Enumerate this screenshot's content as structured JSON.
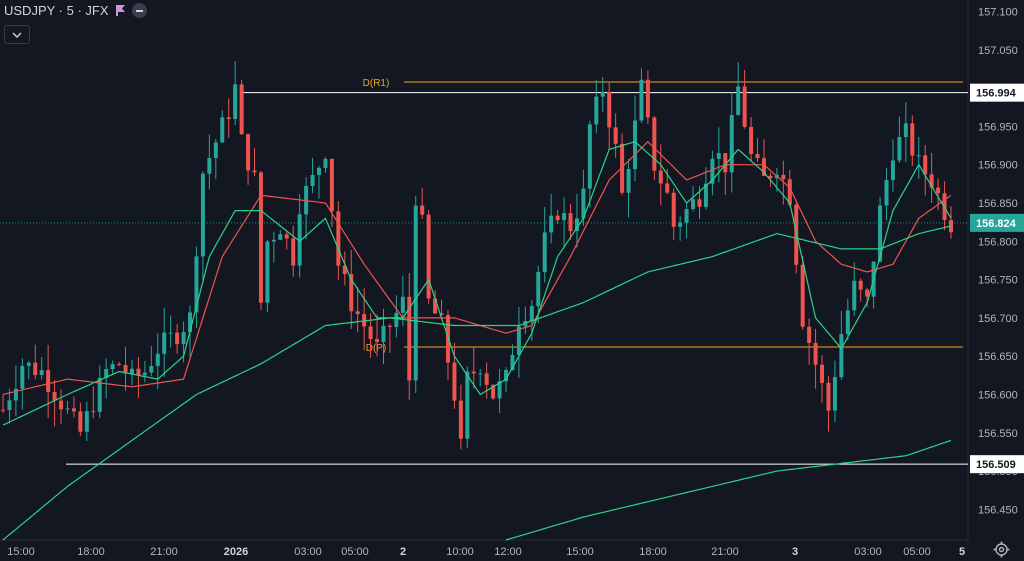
{
  "header": {
    "symbol_line": "USDJPY · 5 · JFX"
  },
  "chart_data": {
    "type": "line",
    "symbol": "USDJPY",
    "timeframe": "5",
    "source": "JFX",
    "ylim": [
      156.41,
      157.115
    ],
    "price_ticks": [
      157.1,
      157.05,
      156.95,
      156.9,
      156.85,
      156.8,
      156.75,
      156.7,
      156.65,
      156.6,
      156.55,
      156.5,
      156.45
    ],
    "price_tick_labels": [
      "157.100",
      "157.050",
      "156.950",
      "156.900",
      "156.850",
      "156.800",
      "156.750",
      "156.700",
      "156.650",
      "156.600",
      "156.550",
      "156.500",
      "156.450"
    ],
    "time_labels": [
      "15:00",
      "18:00",
      "21:00",
      "2026",
      "03:00",
      "05:00",
      "2",
      "10:00",
      "12:00",
      "15:00",
      "18:00",
      "21:00",
      "3",
      "03:00",
      "05:00",
      "5"
    ],
    "current_price": {
      "label": "156.824",
      "value": 156.824,
      "color": "#26a69a"
    },
    "horizontal_lines": [
      {
        "name": "high",
        "value": 156.994,
        "label": "156.994",
        "color": "#ffffff"
      },
      {
        "name": "low",
        "value": 156.509,
        "label": "156.509",
        "color": "#ffffff"
      },
      {
        "name": "D(R1)",
        "value": 157.008,
        "label": "D(R1)",
        "color": "#f7a21b"
      },
      {
        "name": "D(P)",
        "value": 156.662,
        "label": "D(P)",
        "color": "#f7a21b"
      }
    ],
    "colors": {
      "up": "#26a69a",
      "down": "#ef5350",
      "ma_fast": "#2bd38a",
      "ma_mid": "#ef5350",
      "ma_slow": "#2bd38a",
      "background": "#131722"
    },
    "price_path": [
      [
        0,
        156.58
      ],
      [
        3,
        156.64
      ],
      [
        6,
        156.63
      ],
      [
        9,
        156.59
      ],
      [
        12,
        156.55
      ],
      [
        14,
        156.59
      ],
      [
        16,
        156.63
      ],
      [
        18,
        156.64
      ],
      [
        20,
        156.62
      ],
      [
        22,
        156.63
      ],
      [
        24,
        156.66
      ],
      [
        27,
        156.68
      ],
      [
        29,
        156.7
      ],
      [
        31,
        156.89
      ],
      [
        33,
        156.93
      ],
      [
        35,
        156.97
      ],
      [
        36,
        157.0
      ],
      [
        37,
        156.93
      ],
      [
        39,
        156.88
      ],
      [
        40,
        156.72
      ],
      [
        41,
        156.8
      ],
      [
        43,
        156.82
      ],
      [
        45,
        156.78
      ],
      [
        46,
        156.85
      ],
      [
        48,
        156.88
      ],
      [
        50,
        156.92
      ],
      [
        52,
        156.77
      ],
      [
        54,
        156.72
      ],
      [
        56,
        156.69
      ],
      [
        58,
        156.66
      ],
      [
        60,
        156.69
      ],
      [
        62,
        156.72
      ],
      [
        63,
        156.62
      ],
      [
        64,
        156.86
      ],
      [
        65,
        156.82
      ],
      [
        66,
        156.72
      ],
      [
        68,
        156.69
      ],
      [
        70,
        156.6
      ],
      [
        71,
        156.53
      ],
      [
        72,
        156.62
      ],
      [
        74,
        156.64
      ],
      [
        76,
        156.6
      ],
      [
        78,
        156.62
      ],
      [
        80,
        156.7
      ],
      [
        82,
        156.72
      ],
      [
        84,
        156.8
      ],
      [
        86,
        156.84
      ],
      [
        88,
        156.82
      ],
      [
        90,
        156.86
      ],
      [
        91,
        156.95
      ],
      [
        93,
        157.0
      ],
      [
        95,
        156.92
      ],
      [
        96,
        156.86
      ],
      [
        98,
        156.95
      ],
      [
        99,
        157.0
      ],
      [
        101,
        156.9
      ],
      [
        103,
        156.86
      ],
      [
        104,
        156.82
      ],
      [
        106,
        156.84
      ],
      [
        108,
        156.86
      ],
      [
        110,
        156.92
      ],
      [
        112,
        156.9
      ],
      [
        114,
        157.0
      ],
      [
        116,
        156.91
      ],
      [
        118,
        156.88
      ],
      [
        120,
        156.9
      ],
      [
        122,
        156.86
      ],
      [
        124,
        156.7
      ],
      [
        126,
        156.64
      ],
      [
        128,
        156.58
      ],
      [
        130,
        156.68
      ],
      [
        132,
        156.74
      ],
      [
        134,
        156.72
      ],
      [
        136,
        156.84
      ],
      [
        138,
        156.92
      ],
      [
        140,
        156.94
      ],
      [
        142,
        156.9
      ],
      [
        144,
        156.88
      ],
      [
        146,
        156.84
      ],
      [
        147,
        156.824
      ]
    ],
    "ma_fast_path": [
      [
        0,
        156.56
      ],
      [
        10,
        156.6
      ],
      [
        18,
        156.63
      ],
      [
        24,
        156.62
      ],
      [
        28,
        156.65
      ],
      [
        32,
        156.78
      ],
      [
        36,
        156.84
      ],
      [
        40,
        156.84
      ],
      [
        46,
        156.8
      ],
      [
        50,
        156.83
      ],
      [
        54,
        156.75
      ],
      [
        58,
        156.7
      ],
      [
        62,
        156.7
      ],
      [
        66,
        156.75
      ],
      [
        70,
        156.65
      ],
      [
        74,
        156.6
      ],
      [
        78,
        156.62
      ],
      [
        82,
        156.68
      ],
      [
        86,
        156.78
      ],
      [
        90,
        156.83
      ],
      [
        94,
        156.92
      ],
      [
        98,
        156.93
      ],
      [
        102,
        156.9
      ],
      [
        106,
        156.85
      ],
      [
        110,
        156.88
      ],
      [
        114,
        156.92
      ],
      [
        118,
        156.89
      ],
      [
        122,
        156.85
      ],
      [
        126,
        156.7
      ],
      [
        130,
        156.66
      ],
      [
        134,
        156.72
      ],
      [
        138,
        156.84
      ],
      [
        142,
        156.9
      ],
      [
        147,
        156.83
      ]
    ],
    "ma_mid_path": [
      [
        0,
        156.6
      ],
      [
        10,
        156.62
      ],
      [
        20,
        156.61
      ],
      [
        28,
        156.62
      ],
      [
        34,
        156.78
      ],
      [
        40,
        156.86
      ],
      [
        50,
        156.85
      ],
      [
        56,
        156.77
      ],
      [
        62,
        156.7
      ],
      [
        70,
        156.7
      ],
      [
        78,
        156.68
      ],
      [
        82,
        156.69
      ],
      [
        88,
        156.78
      ],
      [
        94,
        156.88
      ],
      [
        100,
        156.93
      ],
      [
        106,
        156.88
      ],
      [
        112,
        156.9
      ],
      [
        118,
        156.9
      ],
      [
        122,
        156.87
      ],
      [
        126,
        156.8
      ],
      [
        130,
        156.77
      ],
      [
        134,
        156.76
      ],
      [
        138,
        156.77
      ],
      [
        142,
        156.83
      ],
      [
        147,
        156.86
      ]
    ],
    "ma_slow_path": [
      [
        0,
        156.41
      ],
      [
        10,
        156.48
      ],
      [
        20,
        156.54
      ],
      [
        30,
        156.6
      ],
      [
        40,
        156.64
      ],
      [
        50,
        156.69
      ],
      [
        60,
        156.7
      ],
      [
        70,
        156.69
      ],
      [
        80,
        156.69
      ],
      [
        90,
        156.72
      ],
      [
        100,
        156.76
      ],
      [
        110,
        156.78
      ],
      [
        120,
        156.81
      ],
      [
        130,
        156.79
      ],
      [
        136,
        156.79
      ],
      [
        142,
        156.81
      ],
      [
        147,
        156.82
      ]
    ],
    "ma_long_path": [
      [
        78,
        156.41
      ],
      [
        90,
        156.44
      ],
      [
        100,
        156.46
      ],
      [
        110,
        156.48
      ],
      [
        120,
        156.5
      ],
      [
        130,
        156.51
      ],
      [
        140,
        156.52
      ],
      [
        147,
        156.54
      ]
    ]
  }
}
